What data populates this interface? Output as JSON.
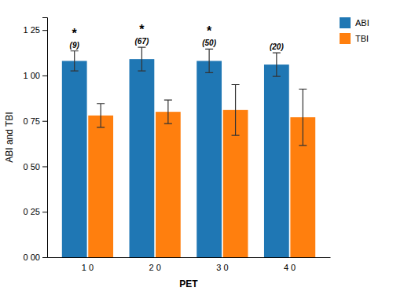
{
  "chart_data": {
    "type": "bar",
    "categories": [
      "1 0",
      "2 0",
      "3 0",
      "4 0"
    ],
    "series": [
      {
        "name": "ABI",
        "values": [
          1.08,
          1.09,
          1.08,
          1.06
        ],
        "errors": [
          0.055,
          0.065,
          0.065,
          0.065
        ]
      },
      {
        "name": "TBI",
        "values": [
          0.78,
          0.8,
          0.81,
          0.77
        ],
        "errors": [
          0.065,
          0.065,
          0.14,
          0.155
        ]
      }
    ],
    "annotations": [
      {
        "text": "(9)",
        "category": "1 0",
        "series": "ABI"
      },
      {
        "text": "(67)",
        "category": "2 0",
        "series": "ABI"
      },
      {
        "text": "(50)",
        "category": "3 0",
        "series": "ABI"
      },
      {
        "text": "(20)",
        "category": "4 0",
        "series": "ABI"
      },
      {
        "text": "*",
        "category": "1 0",
        "series": "ABI"
      },
      {
        "text": "*",
        "category": "2 0",
        "series": "ABI"
      },
      {
        "text": "*",
        "category": "3 0",
        "series": "ABI"
      }
    ],
    "xlabel": "PET",
    "ylabel": "ABI and TBI",
    "ylim": [
      0.0,
      1.32
    ],
    "yticks": [
      {
        "value": 0.0,
        "label": "0 00"
      },
      {
        "value": 0.25,
        "label": "0 25"
      },
      {
        "value": 0.5,
        "label": "0 50"
      },
      {
        "value": 0.75,
        "label": "0 75"
      },
      {
        "value": 1.0,
        "label": "1 00"
      },
      {
        "value": 1.25,
        "label": "1 25"
      }
    ],
    "grid": false,
    "legend": "upper right"
  }
}
